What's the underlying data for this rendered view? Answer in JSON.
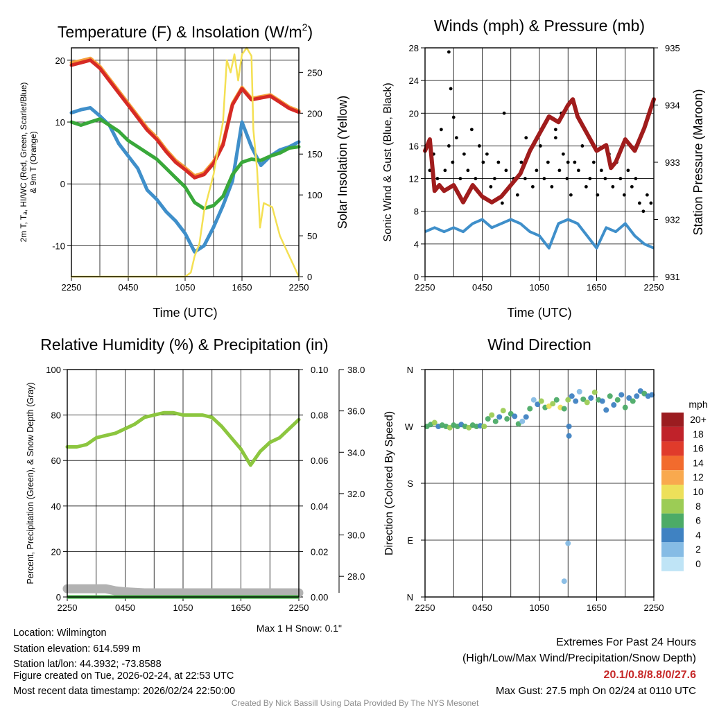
{
  "colors": {
    "temp_red": "#d62a25",
    "temp_orange": "#f5a03b",
    "hiwc_green": "#39a83a",
    "dewpoint_blue": "#3f8fca",
    "solar_yellow": "#f4e053",
    "gust_black": "#000000",
    "pressure_maroon": "#a01c1c",
    "rh_green": "#8cc63f",
    "snow_gray": "#b2b2b2",
    "credit_gray": "#8c8c8c",
    "extremes_red": "#c62828"
  },
  "time_ticks": [
    "2250",
    "0450",
    "1050",
    "1650",
    "2250"
  ],
  "chart_data": [
    {
      "id": "temperature",
      "type": "line",
      "title": "Temperature (F) & Insolation (W/m",
      "title_sup": "2",
      "title_close": ")",
      "xlabel": "Time (UTC)",
      "ylabel_left": [
        "2m T, Tₐ, HI/WC (Red, Green, Scarlet/Blue)",
        "& 9m T (Orange)"
      ],
      "ylabel_right": "Solar Insolation (Yellow)",
      "x_hours": [
        0,
        24
      ],
      "ylim_left": [
        -15,
        22
      ],
      "left_ticks": [
        "20",
        "10",
        "0",
        "-10"
      ],
      "ylim_right": [
        0,
        280
      ],
      "right_ticks": [
        "250",
        "200",
        "150",
        "100",
        "50",
        "0"
      ],
      "series": [
        {
          "name": "9m T",
          "color": "#f5a03b",
          "axis": "left",
          "x": [
            0,
            1,
            2,
            3,
            4,
            5,
            6,
            7,
            8,
            9,
            10,
            11,
            12,
            13,
            14,
            15,
            16,
            17,
            18,
            19,
            20,
            21,
            22,
            23,
            24
          ],
          "y": [
            19.6,
            19.9,
            20.3,
            19.0,
            17.0,
            15.0,
            13.0,
            11.0,
            9.0,
            7.5,
            5.5,
            3.8,
            2.6,
            1.3,
            1.8,
            3.6,
            6.6,
            13.0,
            15.6,
            13.8,
            14.1,
            14.4,
            13.4,
            12.4,
            11.8
          ]
        },
        {
          "name": "2m T",
          "color": "#d62a25",
          "axis": "left",
          "x": [
            0,
            1,
            2,
            3,
            4,
            5,
            6,
            7,
            8,
            9,
            10,
            11,
            12,
            13,
            14,
            15,
            16,
            17,
            18,
            19,
            20,
            21,
            22,
            23,
            24
          ],
          "y": [
            19.2,
            19.6,
            20.0,
            18.7,
            16.7,
            14.7,
            12.7,
            10.7,
            8.7,
            7.2,
            5.2,
            3.5,
            2.3,
            1.0,
            1.5,
            3.3,
            6.3,
            12.8,
            15.4,
            13.6,
            13.9,
            14.2,
            13.2,
            12.2,
            11.6
          ]
        },
        {
          "name": "Td",
          "color": "#3f8fca",
          "axis": "left",
          "x": [
            0,
            1,
            2,
            3,
            4,
            5,
            6,
            7,
            8,
            9,
            10,
            11,
            12,
            13,
            14,
            15,
            16,
            17,
            18,
            19,
            20,
            21,
            22,
            23,
            24
          ],
          "y": [
            11.5,
            12.0,
            12.3,
            11.0,
            9.5,
            6.5,
            4.5,
            2.5,
            -1.0,
            -2.5,
            -4.5,
            -6.0,
            -8.0,
            -11.0,
            -10.0,
            -7.0,
            -3.5,
            0.5,
            10.0,
            6.0,
            3.0,
            4.5,
            5.5,
            6.0,
            6.8
          ]
        },
        {
          "name": "HI/WC",
          "color": "#39a83a",
          "axis": "left",
          "x": [
            0,
            1,
            2,
            3,
            4,
            5,
            6,
            7,
            8,
            9,
            10,
            11,
            12,
            13,
            14,
            15,
            16,
            17,
            18,
            19,
            20,
            21,
            22,
            23,
            24
          ],
          "y": [
            10.0,
            9.5,
            10.0,
            10.5,
            9.5,
            8.5,
            7.0,
            6.0,
            5.0,
            4.0,
            2.5,
            1.0,
            -0.5,
            -3.0,
            -4.0,
            -3.5,
            -2.0,
            1.5,
            3.5,
            4.0,
            3.8,
            4.5,
            5.0,
            5.8,
            6.0
          ]
        },
        {
          "name": "Solar Insolation",
          "color": "#f4e053",
          "axis": "right",
          "x": [
            0,
            9,
            10,
            12,
            12.6,
            13,
            13.5,
            14,
            15,
            16,
            16.4,
            16.8,
            17.2,
            17.6,
            18,
            18.5,
            19,
            19.2,
            19.6,
            19.9,
            20.3,
            21.2,
            22,
            23,
            24
          ],
          "y": [
            0,
            0,
            0,
            0,
            5,
            25,
            40,
            80,
            125,
            190,
            265,
            250,
            272,
            240,
            272,
            280,
            270,
            180,
            130,
            60,
            90,
            85,
            50,
            25,
            0
          ]
        }
      ]
    },
    {
      "id": "winds",
      "type": "scatter+line",
      "title": "Winds (mph) & Pressure (mb)",
      "xlabel": "Time (UTC)",
      "ylabel_left": "Sonic Wind & Gust (Blue, Black)",
      "ylabel_right": "Station Pressure (Maroon)",
      "x_hours": [
        0,
        24
      ],
      "ylim_left": [
        0,
        28
      ],
      "left_ticks": [
        "28",
        "24",
        "20",
        "16",
        "12",
        "8",
        "4",
        "0"
      ],
      "ylim_right": [
        931,
        935
      ],
      "right_ticks": [
        "935",
        "934",
        "933",
        "932",
        "931"
      ],
      "wind_speed": {
        "name": "Sonic Wind",
        "color": "#3f8fca",
        "x": [
          0,
          1,
          2,
          3,
          4,
          5,
          6,
          7,
          8,
          9,
          10,
          11,
          12,
          13,
          14,
          15,
          16,
          17,
          18,
          19,
          20,
          21,
          22,
          23,
          24
        ],
        "y": [
          5.5,
          6.0,
          5.5,
          6.0,
          5.5,
          6.5,
          7.0,
          6.0,
          6.5,
          7.0,
          6.5,
          5.5,
          5.0,
          3.5,
          6.5,
          7.0,
          6.5,
          5.0,
          3.5,
          6.0,
          5.5,
          6.5,
          5.0,
          4.0,
          3.5
        ]
      },
      "gust": {
        "name": "Gust",
        "color": "#000000",
        "x": [
          0.1,
          0.5,
          0.9,
          1.3,
          1.7,
          2.1,
          2.5,
          2.9,
          3.3,
          3.7,
          4.1,
          4.5,
          4.9,
          5.3,
          5.7,
          6.1,
          6.5,
          6.9,
          7.3,
          7.7,
          8.1,
          8.5,
          8.9,
          9.3,
          9.7,
          10.1,
          10.5,
          10.9,
          11.3,
          11.7,
          12.1,
          12.5,
          12.9,
          13.3,
          13.7,
          14.1,
          14.5,
          14.9,
          15.3,
          15.7,
          16.1,
          16.5,
          16.9,
          17.3,
          17.7,
          18.1,
          18.5,
          18.9,
          19.3,
          19.7,
          20.1,
          20.5,
          20.9,
          21.3,
          21.7,
          22.1,
          22.5,
          22.9,
          23.3,
          23.7,
          2.5,
          2.7,
          3.0,
          8.3,
          10.6,
          13.7,
          14.3,
          15.0
        ],
        "y": [
          16,
          13,
          15,
          12,
          18,
          13,
          16,
          14,
          17,
          12,
          15,
          13,
          18,
          12,
          16,
          14,
          15,
          11,
          12,
          14,
          9,
          13,
          11,
          12,
          10,
          14,
          12,
          15,
          11,
          13,
          16,
          12,
          14,
          11,
          17,
          13,
          15,
          12,
          10,
          14,
          13,
          16,
          11,
          12,
          14,
          10,
          13,
          12,
          15,
          11,
          14,
          12,
          10,
          13,
          11,
          12,
          9,
          8,
          10,
          9,
          27.5,
          23,
          19.5,
          20,
          17,
          18,
          20,
          14
        ]
      },
      "pressure": {
        "name": "Station Pressure",
        "color": "#a01c1c",
        "x": [
          0,
          0.5,
          1,
          1.5,
          2,
          3,
          4,
          5,
          6,
          7,
          8,
          9,
          10,
          11,
          12,
          13,
          14,
          15,
          15.5,
          16,
          17,
          18,
          19,
          19.5,
          20,
          21,
          22,
          23,
          24
        ],
        "y": [
          933.2,
          933.4,
          932.5,
          932.6,
          932.5,
          932.6,
          932.3,
          932.6,
          932.4,
          932.3,
          932.4,
          932.6,
          932.8,
          933.2,
          933.5,
          933.8,
          933.7,
          934.0,
          934.1,
          933.8,
          933.5,
          933.2,
          933.3,
          932.9,
          933.0,
          933.4,
          933.2,
          933.6,
          934.1
        ]
      }
    },
    {
      "id": "humidity",
      "type": "line",
      "title": "Relative Humidity (%) & Precipitation (in)",
      "ylabel_left": "Percent, Precipitation (Green), & Snow Depth (Gray)",
      "x_hours": [
        0,
        24
      ],
      "ylim_left": [
        0,
        100
      ],
      "left_ticks": [
        "100",
        "80",
        "60",
        "40",
        "20",
        "0"
      ],
      "ylim_precip": [
        0,
        0.1
      ],
      "precip_ticks": [
        "0.10",
        "0.08",
        "0.06",
        "0.04",
        "0.02",
        "0.00"
      ],
      "ylim_snow": [
        27.0,
        38.0
      ],
      "snow_ticks": [
        "38.0",
        "36.0",
        "34.0",
        "32.0",
        "30.0",
        "28.0"
      ],
      "annotation": "Max 1 H Snow: 0.1\"",
      "series": [
        {
          "name": "Relative Humidity",
          "color": "#8cc63f",
          "x": [
            0,
            1,
            2,
            3,
            4,
            5,
            6,
            7,
            8,
            9,
            10,
            11,
            12,
            13,
            14,
            15,
            16,
            17,
            18,
            19,
            20,
            21,
            22,
            23,
            24
          ],
          "y": [
            66,
            66,
            67,
            70,
            71,
            72,
            74,
            76,
            79,
            80,
            81,
            81,
            80,
            80,
            80,
            79,
            75,
            70,
            65,
            58,
            64,
            68,
            70,
            74,
            78
          ]
        },
        {
          "name": "Snow Depth",
          "color": "#b2b2b2",
          "x": [
            0,
            2,
            4,
            5,
            6,
            8,
            10,
            14,
            18,
            24
          ],
          "y": [
            27.4,
            27.4,
            27.4,
            27.3,
            27.25,
            27.2,
            27.2,
            27.2,
            27.2,
            27.2
          ]
        },
        {
          "name": "Precipitation",
          "color": "#39a83a",
          "x": [
            0,
            24
          ],
          "y": [
            0,
            0
          ]
        }
      ]
    },
    {
      "id": "wind_direction",
      "type": "scatter",
      "title": "Wind Direction",
      "ylabel_left": "Direction (Colored By Speed)",
      "x_hours": [
        0,
        24
      ],
      "dir_ticks": [
        "N",
        "W",
        "S",
        "E",
        "N"
      ],
      "ylim_deg": [
        0,
        360
      ],
      "points": {
        "x": [
          0.2,
          0.6,
          1.0,
          1.4,
          1.8,
          2.2,
          2.6,
          3.0,
          3.4,
          3.8,
          4.2,
          4.6,
          5.0,
          5.4,
          5.8,
          6.2,
          6.6,
          7.0,
          7.4,
          7.8,
          8.2,
          8.6,
          9.0,
          9.4,
          9.8,
          10.2,
          10.6,
          11.0,
          11.4,
          11.8,
          12.2,
          12.6,
          13.0,
          13.4,
          13.8,
          14.2,
          14.6,
          15.0,
          15.4,
          15.8,
          16.2,
          16.6,
          17.0,
          17.4,
          17.8,
          18.2,
          18.6,
          19.0,
          19.4,
          19.8,
          20.2,
          20.6,
          21.0,
          21.4,
          21.8,
          22.2,
          22.6,
          23.0,
          23.4,
          23.8,
          15.1,
          15.1,
          15.0,
          14.6
        ],
        "deg": [
          270,
          273,
          276,
          270,
          272,
          270,
          268,
          272,
          270,
          273,
          270,
          268,
          272,
          270,
          271,
          270,
          282,
          288,
          278,
          285,
          295,
          282,
          290,
          286,
          274,
          278,
          285,
          298,
          312,
          305,
          310,
          300,
          302,
          306,
          312,
          300,
          298,
          312,
          318,
          310,
          325,
          313,
          308,
          315,
          324,
          312,
          310,
          296,
          318,
          304,
          312,
          320,
          300,
          315,
          310,
          318,
          326,
          322,
          318,
          320,
          270,
          255,
          85,
          25
        ],
        "speed": [
          5,
          6,
          7,
          4,
          6,
          5,
          8,
          5,
          6,
          4,
          6,
          7,
          5,
          6,
          4,
          8,
          6,
          7,
          5,
          4,
          7,
          6,
          5,
          4,
          6,
          2,
          3,
          5,
          2,
          3,
          7,
          6,
          9,
          8,
          5,
          9,
          6,
          8,
          4,
          3,
          2,
          5,
          7,
          4,
          8,
          6,
          3,
          4,
          6,
          3,
          5,
          4,
          6,
          3,
          5,
          4,
          3,
          5,
          4,
          3,
          3,
          4,
          2,
          2
        ]
      },
      "legend": {
        "title": "mph",
        "labels": [
          "20+",
          "18",
          "16",
          "14",
          "12",
          "10",
          "8",
          "6",
          "4",
          "2",
          "0"
        ],
        "colors": [
          "#9b1c20",
          "#c0222a",
          "#e03b2b",
          "#f26b2d",
          "#f9a94e",
          "#ede05a",
          "#9ccc55",
          "#4cab67",
          "#3f82c2",
          "#86bce5",
          "#bfe4f6"
        ]
      }
    }
  ],
  "footer": {
    "location": "Location: Wilmington",
    "elevation": "Station elevation: 614.599 m",
    "latlon": "Station lat/lon: 44.3932; -73.8588",
    "created": "Figure created on Tue, 2026-02-24, at 22:53 UTC",
    "recent": "Most recent data timestamp: 2026/02/24 22:50:00",
    "extremes_title": "Extremes For Past 24 Hours",
    "extremes_fields": "(High/Low/Max Wind/Precipitation/Snow Depth)",
    "extremes_values": "20.1/0.8/8.8/0/27.6",
    "max_gust": "Max Gust: 27.5 mph On 02/24 at 0110 UTC",
    "credit": "Created By Nick Bassill Using Data Provided By The NYS Mesonet"
  }
}
